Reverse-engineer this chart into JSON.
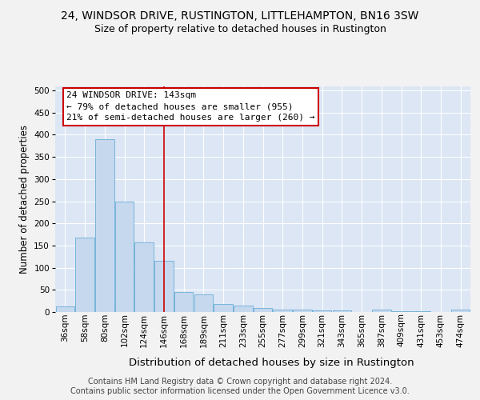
{
  "title": "24, WINDSOR DRIVE, RUSTINGTON, LITTLEHAMPTON, BN16 3SW",
  "subtitle": "Size of property relative to detached houses in Rustington",
  "xlabel": "Distribution of detached houses by size in Rustington",
  "ylabel": "Number of detached properties",
  "categories": [
    "36sqm",
    "58sqm",
    "80sqm",
    "102sqm",
    "124sqm",
    "146sqm",
    "168sqm",
    "189sqm",
    "211sqm",
    "233sqm",
    "255sqm",
    "277sqm",
    "299sqm",
    "321sqm",
    "343sqm",
    "365sqm",
    "387sqm",
    "409sqm",
    "431sqm",
    "453sqm",
    "474sqm"
  ],
  "values": [
    13,
    168,
    390,
    250,
    157,
    115,
    45,
    40,
    18,
    14,
    9,
    6,
    5,
    4,
    3,
    0,
    5,
    2,
    2,
    0,
    5
  ],
  "bar_color": "#c5d8ee",
  "bar_edge_color": "#6aaed6",
  "vline_x_index": 5.0,
  "annotation_line1": "24 WINDSOR DRIVE: 143sqm",
  "annotation_line2": "← 79% of detached houses are smaller (955)",
  "annotation_line3": "21% of semi-detached houses are larger (260) →",
  "annotation_box_facecolor": "#ffffff",
  "annotation_box_edgecolor": "#cc0000",
  "vline_color": "#cc0000",
  "ylim": [
    0,
    510
  ],
  "yticks": [
    0,
    50,
    100,
    150,
    200,
    250,
    300,
    350,
    400,
    450,
    500
  ],
  "plot_bg_color": "#dce6f5",
  "fig_bg_color": "#f2f2f2",
  "grid_color": "#ffffff",
  "footer_line1": "Contains HM Land Registry data © Crown copyright and database right 2024.",
  "footer_line2": "Contains public sector information licensed under the Open Government Licence v3.0.",
  "title_fontsize": 10,
  "subtitle_fontsize": 9,
  "xlabel_fontsize": 9.5,
  "ylabel_fontsize": 8.5,
  "tick_fontsize": 7.5,
  "annotation_fontsize": 8,
  "footer_fontsize": 7
}
